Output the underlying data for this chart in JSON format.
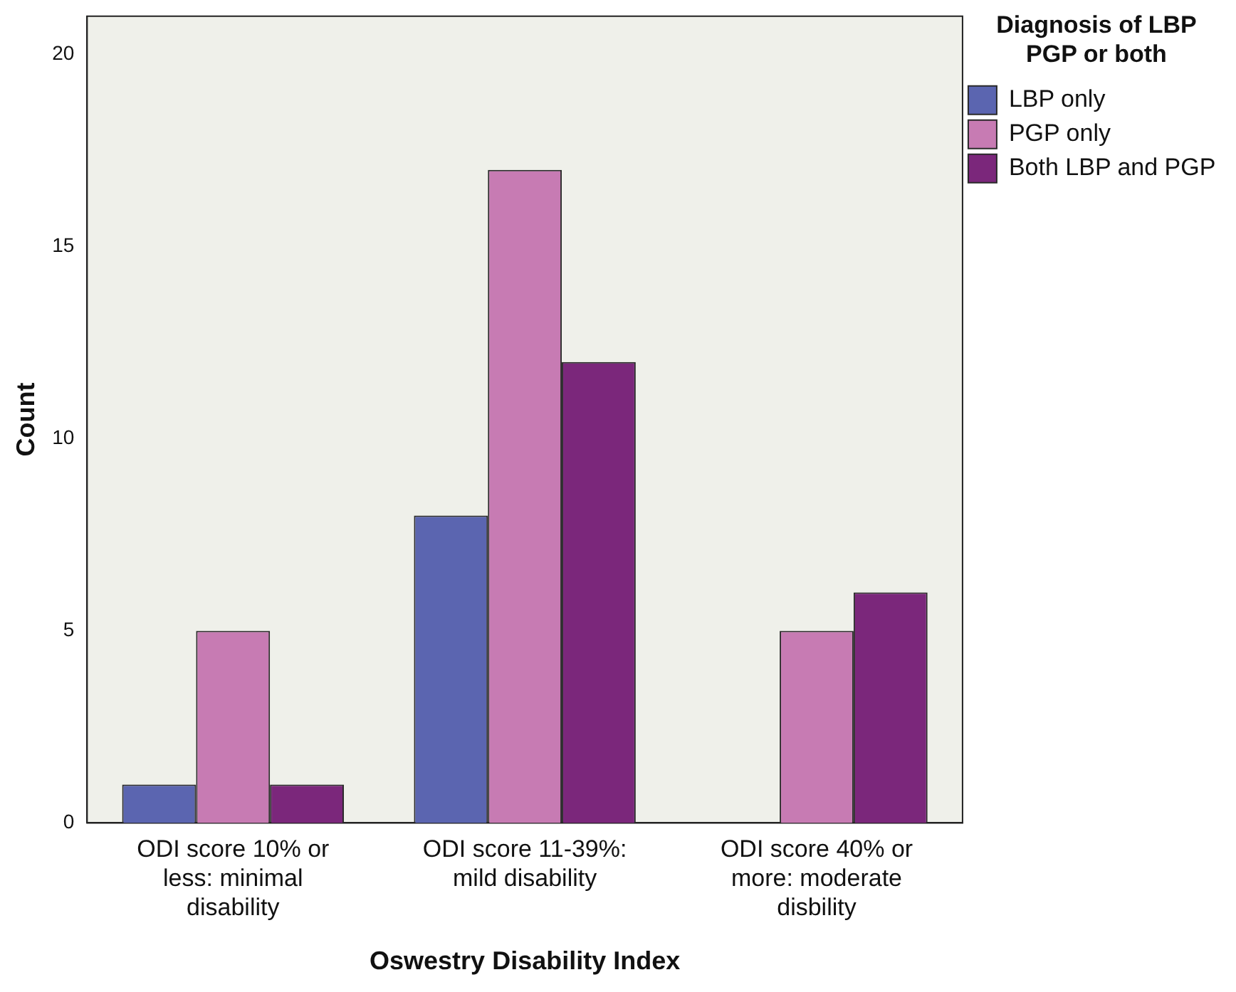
{
  "chart_data": {
    "type": "bar",
    "xlabel": "Oswestry Disability Index",
    "ylabel": "Count",
    "legend_title": "Diagnosis of LBP PGP or both",
    "categories": [
      "ODI score 10% or less: minimal disability",
      "ODI score 11-39%: mild disability",
      "ODI score 40% or more: moderate disbility"
    ],
    "series": [
      {
        "name": "LBP only",
        "color": "#5b65b0",
        "values": [
          1,
          8,
          0
        ]
      },
      {
        "name": "PGP only",
        "color": "#c77bb3",
        "values": [
          5,
          17,
          5
        ]
      },
      {
        "name": "Both LBP and PGP",
        "color": "#7b277b",
        "values": [
          1,
          12,
          6
        ]
      }
    ],
    "ylim": [
      0,
      21
    ],
    "yticks": [
      0,
      5,
      10,
      15,
      20
    ],
    "grid": false,
    "legend": "top right"
  }
}
